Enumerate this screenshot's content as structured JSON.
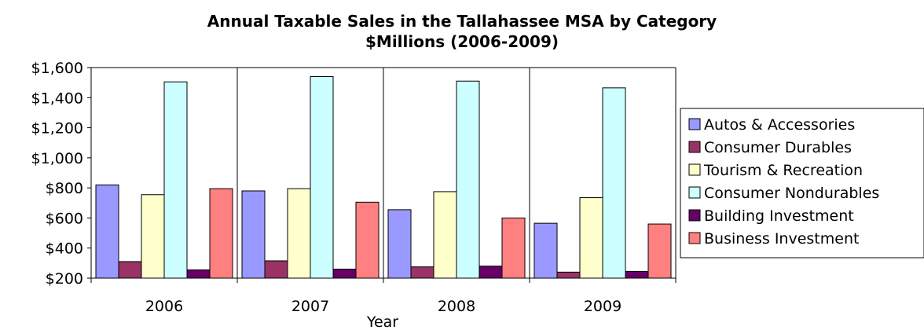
{
  "chart_data": {
    "type": "bar",
    "title": "Annual Taxable Sales in the Tallahassee MSA by Category",
    "subtitle": "$Millions (2006-2009)",
    "xlabel": "Year",
    "ylabel": "",
    "categories": [
      "2006",
      "2007",
      "2008",
      "2009"
    ],
    "ylim": [
      200,
      1600
    ],
    "ytick_labels": [
      "$200",
      "$400",
      "$600",
      "$800",
      "$1,000",
      "$1,200",
      "$1,400",
      "$1,600"
    ],
    "grid": "vertical category dividers",
    "legend_position": "right",
    "series": [
      {
        "name": "Autos & Accessories",
        "color": "#9999ff",
        "values": [
          820,
          780,
          655,
          565
        ]
      },
      {
        "name": "Consumer Durables",
        "color": "#993366",
        "values": [
          310,
          315,
          275,
          240
        ]
      },
      {
        "name": "Tourism & Recreation",
        "color": "#ffffcc",
        "values": [
          755,
          795,
          775,
          735
        ]
      },
      {
        "name": "Consumer Nondurables",
        "color": "#ccffff",
        "values": [
          1505,
          1540,
          1510,
          1465
        ]
      },
      {
        "name": "Building Investment",
        "color": "#660066",
        "values": [
          255,
          260,
          280,
          245
        ]
      },
      {
        "name": "Business Investment",
        "color": "#ff8080",
        "values": [
          795,
          705,
          600,
          560
        ]
      }
    ]
  }
}
